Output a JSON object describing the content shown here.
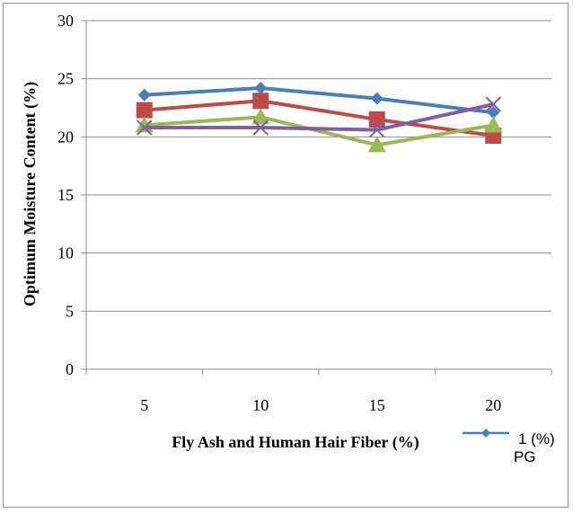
{
  "chart_data": {
    "type": "line",
    "title": "",
    "xlabel": "Fly Ash and Human Hair Fiber (%)",
    "ylabel": "Optimum Moisture Content (%)",
    "categories": [
      "5",
      "10",
      "15",
      "20"
    ],
    "ylim": [
      0,
      30
    ],
    "yticks": [
      0,
      5,
      10,
      15,
      20,
      25,
      30
    ],
    "grid": "horizontal",
    "legend_position": "right",
    "series": [
      {
        "name": "1 (%) PG",
        "values": [
          23.6,
          24.2,
          23.3,
          22.1
        ],
        "color": "#4a7ebb",
        "marker": "diamond"
      },
      {
        "values": [
          22.3,
          23.1,
          21.5,
          20.1
        ],
        "color": "#be4b48",
        "marker": "square"
      },
      {
        "values": [
          21.0,
          21.7,
          19.3,
          21.0
        ],
        "color": "#98b954",
        "marker": "triangle"
      },
      {
        "values": [
          20.8,
          20.8,
          20.6,
          22.8
        ],
        "color": "#7d60a0",
        "marker": "x"
      }
    ],
    "legend": {
      "line1": "1 (%)",
      "line2": "PG"
    }
  }
}
